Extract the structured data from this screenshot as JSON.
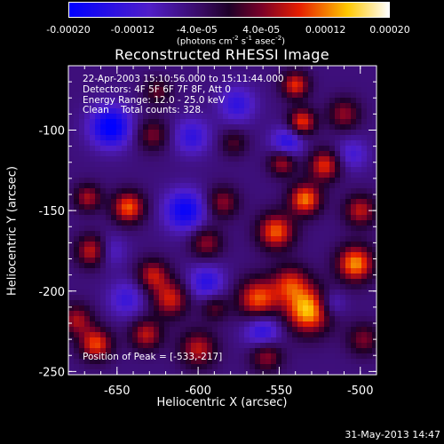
{
  "chart_data": {
    "type": "heatmap",
    "title": "Reconstructed RHESSI Image",
    "xlabel": "Heliocentric X (arcsec)",
    "ylabel": "Heliocentric Y (arcsec)",
    "xlim": [
      -680,
      -490
    ],
    "ylim": [
      -252,
      -60
    ],
    "x_ticks": [
      -650,
      -600,
      -550,
      -500
    ],
    "x_tick_labels": [
      "-650",
      "-600",
      "-550",
      "-500"
    ],
    "y_ticks": [
      -250,
      -200,
      -150,
      -100
    ],
    "y_tick_labels": [
      "-250",
      "-200",
      "-150",
      "-100"
    ],
    "colorbar": {
      "range": [
        -0.0002,
        0.0002
      ],
      "ticks": [
        -0.0002,
        -0.00012,
        -4e-05,
        4e-05,
        0.00012,
        0.0002
      ],
      "tick_labels": [
        "-0.00020",
        "-0.00012",
        "-4.0e-05",
        "4.0e-05",
        "0.00012",
        "0.00020"
      ],
      "unit_text": "(photons cm",
      "unit_exp1": "-2",
      "unit_mid": " s",
      "unit_exp2": "-1",
      "unit_end": " asec",
      "unit_exp3": "-2",
      "unit_close": ")",
      "colormap": "RHESSI blue-purple-red-yellow-white"
    },
    "blobs": [
      {
        "x": -532,
        "y": -212,
        "amp": 1.0,
        "s": 10
      },
      {
        "x": -563,
        "y": -205,
        "amp": 0.8,
        "s": 9
      },
      {
        "x": -543,
        "y": -195,
        "amp": 0.6,
        "s": 8
      },
      {
        "x": -552,
        "y": -163,
        "amp": 0.8,
        "s": 8
      },
      {
        "x": -534,
        "y": -143,
        "amp": 0.85,
        "s": 7
      },
      {
        "x": -522,
        "y": -122,
        "amp": 0.7,
        "s": 7
      },
      {
        "x": -536,
        "y": -95,
        "amp": 0.75,
        "s": 6
      },
      {
        "x": -548,
        "y": -120,
        "amp": 0.6,
        "s": 6
      },
      {
        "x": -540,
        "y": -72,
        "amp": 0.7,
        "s": 6
      },
      {
        "x": -503,
        "y": -183,
        "amp": 0.9,
        "s": 8
      },
      {
        "x": -500,
        "y": -150,
        "amp": 0.6,
        "s": 7
      },
      {
        "x": -510,
        "y": -90,
        "amp": 0.5,
        "s": 7
      },
      {
        "x": -585,
        "y": -145,
        "amp": 0.5,
        "s": 7
      },
      {
        "x": -595,
        "y": -170,
        "amp": 0.5,
        "s": 7
      },
      {
        "x": -643,
        "y": -148,
        "amp": 0.8,
        "s": 7
      },
      {
        "x": -665,
        "y": -175,
        "amp": 0.7,
        "s": 7
      },
      {
        "x": -668,
        "y": -142,
        "amp": 0.55,
        "s": 6
      },
      {
        "x": -617,
        "y": -205,
        "amp": 0.65,
        "s": 8
      },
      {
        "x": -628,
        "y": -190,
        "amp": 0.6,
        "s": 7
      },
      {
        "x": -675,
        "y": -218,
        "amp": 0.55,
        "s": 7
      },
      {
        "x": -663,
        "y": -233,
        "amp": 0.75,
        "s": 7
      },
      {
        "x": -632,
        "y": -227,
        "amp": 0.6,
        "s": 7
      },
      {
        "x": -600,
        "y": -236,
        "amp": 0.6,
        "s": 8
      },
      {
        "x": -590,
        "y": -210,
        "amp": 0.4,
        "s": 6
      },
      {
        "x": -628,
        "y": -103,
        "amp": 0.45,
        "s": 7
      },
      {
        "x": -625,
        "y": -76,
        "amp": 0.4,
        "s": 6
      },
      {
        "x": -498,
        "y": -230,
        "amp": 0.45,
        "s": 7
      },
      {
        "x": -578,
        "y": -108,
        "amp": 0.35,
        "s": 6
      },
      {
        "x": -558,
        "y": -240,
        "amp": 0.55,
        "s": 7
      },
      {
        "x": -654,
        "y": -98,
        "amp": -0.8,
        "s": 9
      },
      {
        "x": -608,
        "y": -150,
        "amp": -0.7,
        "s": 9
      },
      {
        "x": -604,
        "y": -104,
        "amp": -0.45,
        "s": 8
      },
      {
        "x": -560,
        "y": -225,
        "amp": -0.55,
        "s": 8
      },
      {
        "x": -545,
        "y": -108,
        "amp": -0.55,
        "s": 7
      },
      {
        "x": -595,
        "y": -195,
        "amp": -0.5,
        "s": 8
      },
      {
        "x": -576,
        "y": -84,
        "amp": -0.45,
        "s": 8
      },
      {
        "x": -644,
        "y": -205,
        "amp": -0.4,
        "s": 8
      },
      {
        "x": -505,
        "y": -115,
        "amp": -0.35,
        "s": 7
      },
      {
        "x": -655,
        "y": -175,
        "amp": -0.35,
        "s": 7
      },
      {
        "x": -518,
        "y": -208,
        "amp": -0.4,
        "s": 6
      }
    ],
    "background_level": -0.25,
    "info_lines": [
      "22-Apr-2003 15:10:56.000 to 15:11:44.000",
      "Detectors: 4F 5F 6F 7F 8F, Att 0",
      "Energy Range: 12.0 - 25.0 keV",
      "Clean    Total counts: 328."
    ],
    "peak_label": "Position of Peak = [-533,-217]"
  },
  "footer": {
    "date": "31-May-2013 14:47"
  }
}
